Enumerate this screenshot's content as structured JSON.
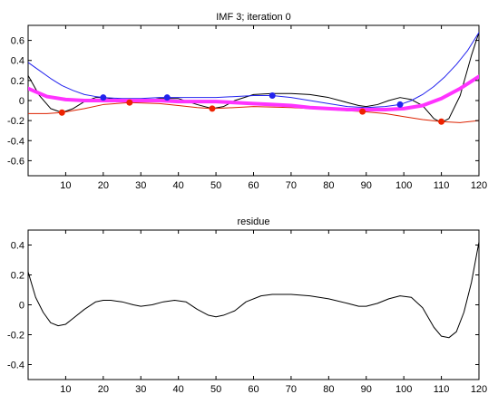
{
  "chart_data": [
    {
      "type": "line",
      "title": "IMF 3;   iteration 0",
      "xlabel": "",
      "ylabel": "",
      "xlim": [
        0,
        120
      ],
      "ylim": [
        -0.75,
        0.75
      ],
      "x_ticks": [
        10,
        20,
        30,
        40,
        50,
        60,
        70,
        80,
        90,
        100,
        110,
        120
      ],
      "y_ticks": [
        -0.6,
        -0.4,
        -0.2,
        0,
        0.2,
        0.4,
        0.6
      ],
      "y_tick_labels": [
        "-0.6",
        "-0.4",
        "-0.2",
        "0",
        "0.2",
        "0.4",
        "0.6"
      ],
      "grid": false,
      "series": [
        {
          "color": "#000000",
          "width": 1,
          "x": [
            0,
            3,
            6,
            9,
            12,
            15,
            18,
            20,
            22,
            25,
            28,
            30,
            35,
            40,
            45,
            49,
            52,
            55,
            60,
            65,
            70,
            75,
            80,
            85,
            88,
            90,
            93,
            96,
            99,
            102,
            105,
            108,
            110,
            112,
            115,
            118,
            120
          ],
          "y": [
            0.25,
            0.05,
            -0.08,
            -0.12,
            -0.08,
            -0.01,
            0.03,
            0.03,
            0.02,
            0.0,
            -0.01,
            -0.01,
            0.02,
            0.02,
            -0.04,
            -0.08,
            -0.06,
            0.0,
            0.06,
            0.07,
            0.07,
            0.06,
            0.03,
            -0.02,
            -0.05,
            -0.06,
            -0.04,
            0.0,
            0.03,
            0.01,
            -0.05,
            -0.18,
            -0.22,
            -0.18,
            0.05,
            0.45,
            0.68
          ]
        },
        {
          "color": "#2222ee",
          "width": 1,
          "x": [
            0,
            3,
            6,
            9,
            12,
            15,
            18,
            20,
            25,
            30,
            35,
            37,
            40,
            45,
            50,
            55,
            60,
            65,
            70,
            75,
            80,
            85,
            90,
            95,
            99,
            102,
            105,
            108,
            111,
            114,
            117,
            120
          ],
          "y": [
            0.38,
            0.3,
            0.22,
            0.15,
            0.1,
            0.06,
            0.04,
            0.03,
            0.02,
            0.02,
            0.03,
            0.03,
            0.03,
            0.03,
            0.03,
            0.04,
            0.05,
            0.05,
            0.03,
            0.0,
            -0.03,
            -0.06,
            -0.07,
            -0.06,
            -0.04,
            0.0,
            0.06,
            0.14,
            0.24,
            0.36,
            0.5,
            0.68
          ]
        },
        {
          "color": "#dd2200",
          "width": 1,
          "x": [
            0,
            5,
            9,
            15,
            20,
            27,
            35,
            40,
            45,
            49,
            55,
            60,
            70,
            80,
            89,
            95,
            100,
            105,
            110,
            115,
            120
          ],
          "y": [
            -0.13,
            -0.13,
            -0.12,
            -0.08,
            -0.04,
            -0.02,
            -0.03,
            -0.05,
            -0.07,
            -0.08,
            -0.07,
            -0.06,
            -0.07,
            -0.09,
            -0.11,
            -0.13,
            -0.16,
            -0.19,
            -0.21,
            -0.22,
            -0.2
          ]
        },
        {
          "color": "#ff33ff",
          "width": 4,
          "x": [
            0,
            5,
            10,
            15,
            20,
            27,
            35,
            40,
            45,
            50,
            55,
            60,
            65,
            70,
            75,
            80,
            85,
            89,
            95,
            100,
            105,
            110,
            115,
            120
          ],
          "y": [
            0.12,
            0.04,
            0.01,
            0.0,
            0.0,
            0.0,
            0.0,
            -0.01,
            -0.01,
            -0.01,
            -0.02,
            -0.03,
            -0.04,
            -0.05,
            -0.07,
            -0.08,
            -0.09,
            -0.09,
            -0.09,
            -0.08,
            -0.05,
            0.02,
            0.12,
            0.24
          ]
        }
      ],
      "markers": [
        {
          "color": "#2222ee",
          "x": [
            20,
            37,
            65,
            99
          ],
          "y": [
            0.03,
            0.03,
            0.05,
            -0.04
          ]
        },
        {
          "color": "#ee2200",
          "x": [
            9,
            27,
            49,
            89,
            110
          ],
          "y": [
            -0.12,
            -0.02,
            -0.08,
            -0.11,
            -0.21
          ]
        }
      ]
    },
    {
      "type": "line",
      "title": "residue",
      "xlabel": "",
      "ylabel": "",
      "xlim": [
        0,
        120
      ],
      "ylim": [
        -0.5,
        0.5
      ],
      "x_ticks": [
        10,
        20,
        30,
        40,
        50,
        60,
        70,
        80,
        90,
        100,
        110,
        120
      ],
      "y_ticks": [
        -0.4,
        -0.2,
        0,
        0.2,
        0.4
      ],
      "y_tick_labels": [
        "-0.4",
        "-0.2",
        "0",
        "0.2",
        "0.4"
      ],
      "grid": false,
      "series": [
        {
          "color": "#000000",
          "width": 1,
          "x": [
            0,
            2,
            4,
            6,
            8,
            10,
            12,
            15,
            18,
            20,
            22,
            25,
            28,
            30,
            33,
            36,
            39,
            42,
            45,
            48,
            50,
            52,
            55,
            58,
            62,
            65,
            70,
            75,
            80,
            85,
            88,
            90,
            93,
            96,
            99,
            102,
            105,
            108,
            110,
            112,
            114,
            116,
            118,
            120
          ],
          "y": [
            0.22,
            0.05,
            -0.05,
            -0.12,
            -0.14,
            -0.13,
            -0.09,
            -0.03,
            0.02,
            0.03,
            0.03,
            0.02,
            0.0,
            -0.01,
            0.0,
            0.02,
            0.03,
            0.02,
            -0.03,
            -0.07,
            -0.08,
            -0.07,
            -0.04,
            0.02,
            0.06,
            0.07,
            0.07,
            0.06,
            0.04,
            0.01,
            -0.01,
            -0.01,
            0.01,
            0.04,
            0.06,
            0.05,
            -0.02,
            -0.15,
            -0.21,
            -0.22,
            -0.18,
            -0.05,
            0.15,
            0.42
          ]
        }
      ]
    }
  ]
}
